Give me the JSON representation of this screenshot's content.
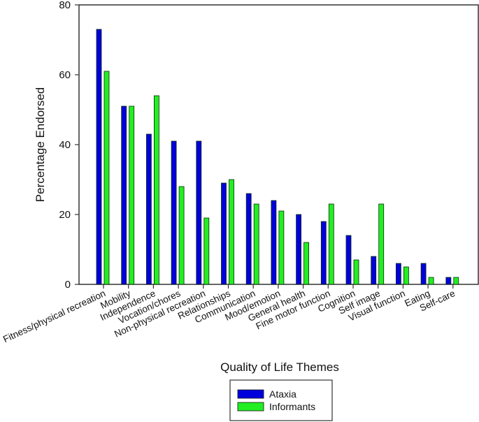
{
  "chart_data": {
    "type": "bar",
    "title": "",
    "xlabel": "Quality of Life Themes",
    "ylabel": "Percentage Endorsed",
    "ylim": [
      0,
      80
    ],
    "yticks": [
      0,
      20,
      40,
      60,
      80
    ],
    "grid": false,
    "legend_position": "bottom-center",
    "categories": [
      "Fitness/physical recreation",
      "Mobility",
      "Independence",
      "Vocation/chores",
      "Non-physical recreation",
      "Relationships",
      "Communication",
      "Mood/emotion",
      "General health",
      "Fine motor function",
      "Cognition",
      "Self image",
      "Visual function",
      "Eating",
      "Self-care"
    ],
    "series": [
      {
        "name": "Ataxia",
        "color": "#0000dd",
        "values": [
          73,
          51,
          43,
          41,
          41,
          29,
          26,
          24,
          20,
          18,
          14,
          8,
          6,
          6,
          2
        ]
      },
      {
        "name": "Informants",
        "color": "#22ee22",
        "values": [
          61,
          51,
          54,
          28,
          19,
          30,
          23,
          21,
          12,
          23,
          7,
          23,
          5,
          2,
          2
        ]
      }
    ]
  }
}
